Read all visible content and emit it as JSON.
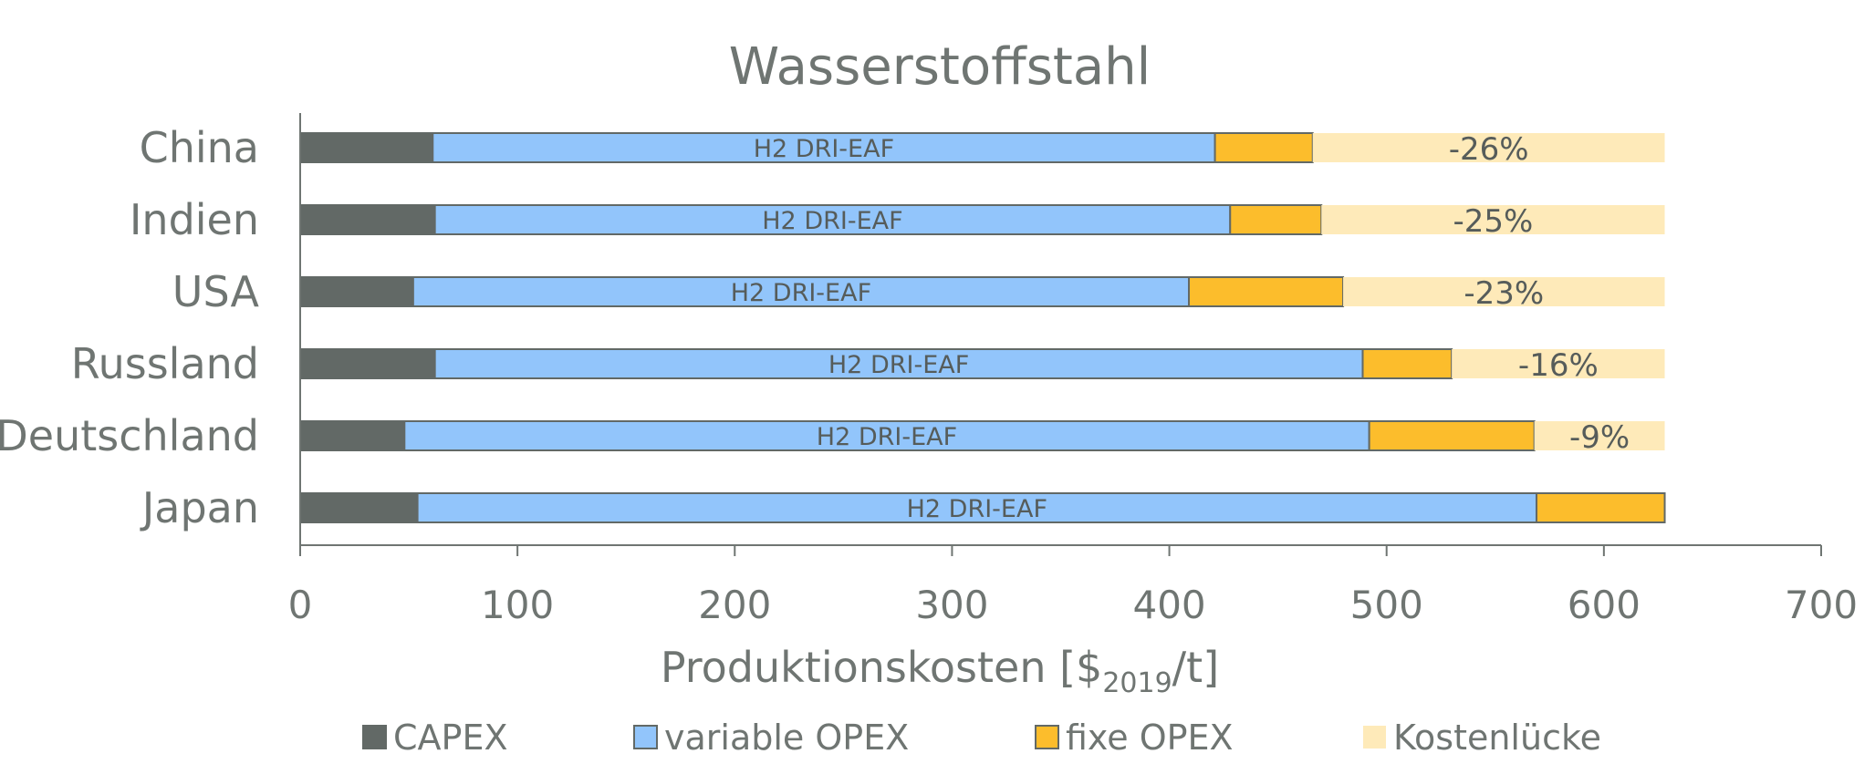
{
  "chart_data": {
    "type": "bar",
    "orientation": "horizontal",
    "stacked": true,
    "title": "Wasserstoffstahl",
    "xlabel_prefix": "Produktionskosten [$",
    "xlabel_sub": "2019",
    "xlabel_suffix": "/t]",
    "xlim": [
      0,
      700
    ],
    "xticks": [
      "0",
      "100",
      "200",
      "300",
      "400",
      "500",
      "600",
      "700"
    ],
    "categories": [
      "China",
      "Indien",
      "USA",
      "Russland",
      "Deutschland",
      "Japan"
    ],
    "bar_text": "H2 DRI-EAF",
    "series": [
      {
        "name": "CAPEX",
        "color": "#626966",
        "values": [
          61,
          62,
          52,
          62,
          48,
          54
        ]
      },
      {
        "name": "variable OPEX",
        "color": "#92c5fb",
        "values": [
          360,
          366,
          357,
          427,
          444,
          515
        ]
      },
      {
        "name": "fixe OPEX",
        "color": "#fcbd2c",
        "values": [
          45,
          42,
          71,
          41,
          76,
          59
        ]
      },
      {
        "name": "Kostenlücke",
        "color": "#feeab9",
        "values": [
          162,
          158,
          148,
          98,
          60,
          0
        ]
      }
    ],
    "gap_labels": [
      "-26%",
      "-25%",
      "-23%",
      "-16%",
      "-9%",
      ""
    ],
    "grid": false,
    "legend_position": "bottom"
  }
}
